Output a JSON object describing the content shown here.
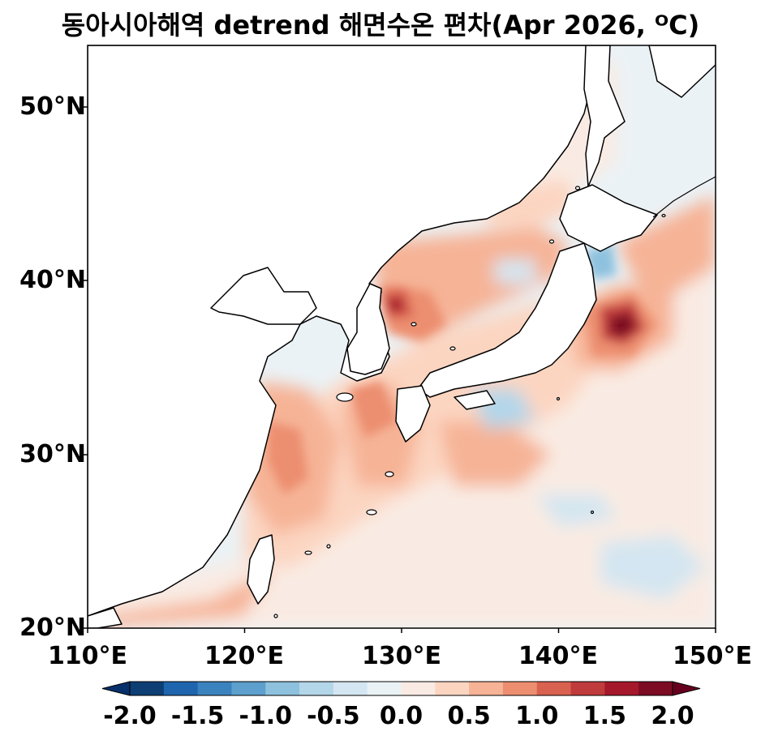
{
  "title": "동아시아해역 detrend 해면수온 편차(Apr 2026, ᴼC)",
  "axes": {
    "y_ticks": [
      "20°N",
      "30°N",
      "40°N",
      "50°N"
    ],
    "x_ticks": [
      "110°E",
      "120°E",
      "130°E",
      "140°E",
      "150°E"
    ]
  },
  "colorbar": {
    "min": -2.0,
    "max": 2.0,
    "step": 0.25,
    "labels": [
      "-2.0",
      "-1.5",
      "-1.0",
      "-0.5",
      "0.0",
      "0.5",
      "1.0",
      "1.5",
      "2.0"
    ],
    "colors": [
      "#0d3e74",
      "#1e65ae",
      "#3a83be",
      "#5d9fcd",
      "#8dc1de",
      "#b3d6e9",
      "#d4e6f1",
      "#ebf2f6",
      "#f9ebe3",
      "#fcd5c1",
      "#f6b396",
      "#ec8e6f",
      "#d9614f",
      "#c03b3c",
      "#a5172b",
      "#7c0b23"
    ]
  },
  "map": {
    "lon_range": [
      110,
      150
    ],
    "lat_range": [
      20,
      53.5
    ],
    "land_color": "#ffffff",
    "coast_color": "#000000"
  }
}
